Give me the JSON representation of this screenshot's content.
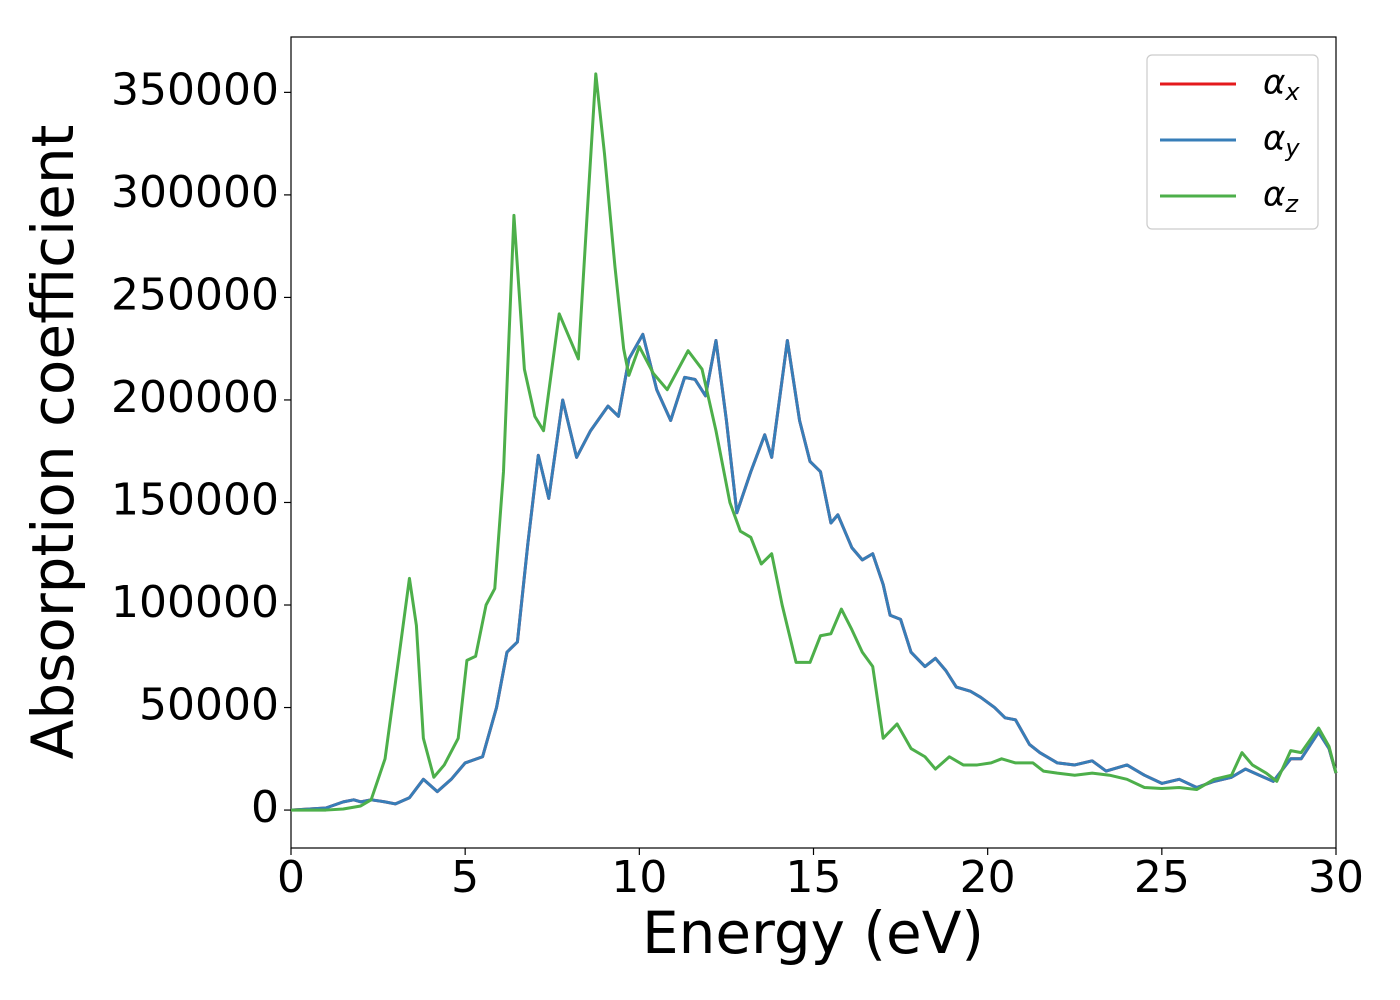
{
  "chart_data": {
    "type": "line",
    "xlabel": "Energy (eV)",
    "ylabel": "Absorption coefficient",
    "xlim": [
      0,
      30
    ],
    "ylim": [
      -18500,
      377000
    ],
    "xticks": [
      0,
      5,
      10,
      15,
      20,
      25,
      30
    ],
    "yticks": [
      0,
      50000,
      100000,
      150000,
      200000,
      250000,
      300000,
      350000
    ],
    "grid": false,
    "legend": "upper right",
    "x": [
      0,
      1,
      1.5,
      1.8,
      2,
      2.3,
      2.7,
      3,
      3.4,
      3.8,
      4.2,
      4.6,
      5,
      5.5,
      5.9,
      6.2,
      6.5,
      6.8,
      7.1,
      7.4,
      7.8,
      8.2,
      8.6,
      9.1,
      9.4,
      9.7,
      10.1,
      10.5,
      10.9,
      11.3,
      11.6,
      11.9,
      12.2,
      12.5,
      12.8,
      13.2,
      13.6,
      13.8,
      14.25,
      14.6,
      14.9,
      15.2,
      15.5,
      15.7,
      16.1,
      16.4,
      16.7,
      17,
      17.2,
      17.5,
      17.8,
      18.2,
      18.5,
      18.8,
      19.1,
      19.5,
      19.8,
      20.2,
      20.5,
      20.8,
      21.2,
      21.5,
      22,
      22.5,
      23,
      23.4,
      24,
      24.5,
      25,
      25.5,
      26,
      26.5,
      27,
      27.4,
      27.8,
      28.2,
      28.7,
      29,
      29.5,
      29.8,
      30
    ],
    "series": [
      {
        "name": "αx",
        "color": "#e41a1c",
        "values": [
          0,
          1000,
          4000,
          5000,
          4000,
          5000,
          4000,
          3000,
          6000,
          15000,
          9000,
          15000,
          23000,
          26000,
          50000,
          77000,
          82000,
          130000,
          173000,
          152000,
          200000,
          172000,
          185000,
          197000,
          192000,
          220000,
          232000,
          205000,
          190000,
          211000,
          210000,
          202000,
          229000,
          190000,
          145000,
          165000,
          183000,
          172000,
          229000,
          190000,
          170000,
          165000,
          140000,
          144000,
          128000,
          122000,
          125000,
          110000,
          95000,
          93000,
          77000,
          70000,
          74000,
          68000,
          60000,
          58000,
          55000,
          50000,
          45000,
          44000,
          32000,
          28000,
          23000,
          22000,
          24000,
          19000,
          22000,
          17000,
          13000,
          15000,
          11000,
          14000,
          16000,
          20000,
          17000,
          14000,
          25000,
          25000,
          38000,
          30000,
          18000
        ]
      },
      {
        "name": "αy",
        "color": "#377eb8",
        "values": [
          0,
          1000,
          4000,
          5000,
          4000,
          5000,
          4000,
          3000,
          6000,
          15000,
          9000,
          15000,
          23000,
          26000,
          50000,
          77000,
          82000,
          130000,
          173000,
          152000,
          200000,
          172000,
          185000,
          197000,
          192000,
          220000,
          232000,
          205000,
          190000,
          211000,
          210000,
          202000,
          229000,
          190000,
          145000,
          165000,
          183000,
          172000,
          229000,
          190000,
          170000,
          165000,
          140000,
          144000,
          128000,
          122000,
          125000,
          110000,
          95000,
          93000,
          77000,
          70000,
          74000,
          68000,
          60000,
          58000,
          55000,
          50000,
          45000,
          44000,
          32000,
          28000,
          23000,
          22000,
          24000,
          19000,
          22000,
          17000,
          13000,
          15000,
          11000,
          14000,
          16000,
          20000,
          17000,
          14000,
          25000,
          25000,
          38000,
          30000,
          18000
        ]
      },
      {
        "name": "αz",
        "color": "#4daf4a",
        "x": [
          0,
          1,
          1.5,
          2,
          2.3,
          2.7,
          3.1,
          3.4,
          3.6,
          3.8,
          4.1,
          4.4,
          4.8,
          5.05,
          5.3,
          5.6,
          5.85,
          6.1,
          6.4,
          6.7,
          7,
          7.25,
          7.7,
          8,
          8.25,
          8.5,
          8.75,
          9,
          9.3,
          9.55,
          9.7,
          10,
          10.4,
          10.8,
          11.4,
          11.8,
          12.2,
          12.6,
          12.9,
          13.2,
          13.5,
          13.8,
          14.1,
          14.5,
          14.9,
          15.2,
          15.5,
          15.8,
          16.1,
          16.4,
          16.7,
          17,
          17.4,
          17.8,
          18.2,
          18.5,
          18.9,
          19.3,
          19.7,
          20.1,
          20.4,
          20.8,
          21.3,
          21.6,
          22,
          22.5,
          23,
          23.5,
          24,
          24.5,
          25,
          25.5,
          26,
          26.5,
          27,
          27.3,
          27.6,
          28,
          28.3,
          28.7,
          29,
          29.5,
          29.8,
          30
        ],
        "values": [
          0,
          0,
          500,
          2000,
          5000,
          25000,
          75000,
          113000,
          90000,
          35000,
          16000,
          22000,
          35000,
          73000,
          75000,
          100000,
          108000,
          165000,
          290000,
          215000,
          192000,
          185000,
          242000,
          230000,
          220000,
          290000,
          359000,
          320000,
          265000,
          225000,
          212000,
          226000,
          213000,
          205000,
          224000,
          215000,
          185000,
          150000,
          136000,
          133000,
          120000,
          125000,
          100000,
          72000,
          72000,
          85000,
          86000,
          98000,
          88000,
          77000,
          70000,
          35000,
          42000,
          30000,
          26000,
          20000,
          26000,
          22000,
          22000,
          23000,
          25000,
          23000,
          23000,
          19000,
          18000,
          17000,
          18000,
          17000,
          15000,
          11000,
          10500,
          11000,
          10000,
          15000,
          17000,
          28000,
          22000,
          18000,
          14000,
          29000,
          28000,
          40000,
          31000,
          18000
        ]
      }
    ]
  }
}
